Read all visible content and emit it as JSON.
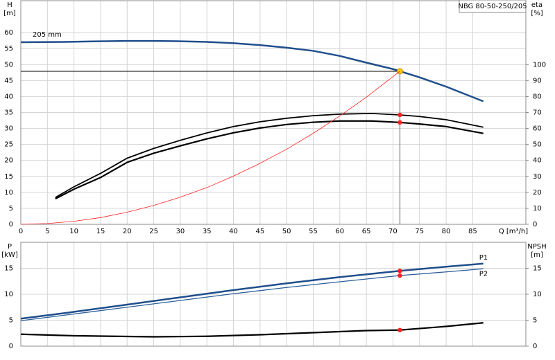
{
  "chart_data": [
    {
      "type": "line",
      "title": "NBG 80-50-250/205",
      "curve_label": "205 mm",
      "ylabel": "H",
      "yunit": "[m]",
      "y2label": "eta",
      "y2unit": "[%]",
      "xlabel": "Q [m³/h]",
      "xlim": [
        0,
        95
      ],
      "xticks": [
        0,
        5,
        10,
        15,
        20,
        25,
        30,
        35,
        40,
        45,
        50,
        55,
        60,
        65,
        70,
        75,
        80,
        85
      ],
      "xtick_labels": true,
      "ylim": [
        0,
        70
      ],
      "yticks": [
        0,
        5,
        10,
        15,
        20,
        25,
        30,
        35,
        40,
        45,
        50,
        55,
        60
      ],
      "y2lim": [
        0,
        140
      ],
      "y2ticks": [
        0,
        10,
        20,
        30,
        40,
        50,
        60,
        70,
        80,
        90,
        100
      ],
      "grid": true,
      "duty_x": 71.3,
      "series": [
        {
          "color": "#1f4e8c",
          "line_width": 2.5,
          "duty_color": "#ffcc00",
          "duty_lines": true,
          "x": [
            0,
            8.5,
            15,
            20,
            25,
            30,
            35,
            40,
            45,
            50,
            55,
            60,
            65,
            70,
            75,
            80,
            87
          ],
          "values": [
            57,
            57.1,
            57.3,
            57.4,
            57.4,
            57.3,
            57.1,
            56.7,
            56.1,
            55.3,
            54.3,
            52.7,
            50.6,
            48.6,
            46.0,
            43.1,
            38.5
          ],
          "duty_value": 47.9
        },
        {
          "color": "#000000",
          "line_width": 1.8,
          "axis": "y2",
          "duty_color": "#ff2020",
          "x": [
            6.5,
            10,
            15,
            20,
            25,
            30,
            35,
            40,
            45,
            50,
            55,
            60,
            66,
            71.3,
            75,
            80,
            87
          ],
          "values": [
            16.8,
            23.5,
            31.9,
            41.4,
            47.5,
            52.6,
            57.2,
            61.2,
            64.2,
            66.4,
            68.0,
            69.0,
            69.4,
            68.5,
            67.5,
            65.5,
            60.8
          ],
          "duty_value": 68.5
        },
        {
          "color": "#000000",
          "line_width": 2.2,
          "axis": "y2",
          "duty_color": "#ff2020",
          "x": [
            6.5,
            10,
            15,
            20,
            25,
            30,
            35,
            40,
            45,
            50,
            55,
            60,
            66,
            71.3,
            75,
            80,
            87
          ],
          "values": [
            16,
            22,
            29.3,
            38.8,
            44.5,
            49.1,
            53.5,
            57.3,
            60.3,
            62.5,
            63.9,
            64.7,
            64.7,
            63.8,
            62.8,
            61.2,
            56.9
          ],
          "duty_value": 63.8
        },
        {
          "color": "#ff2020",
          "line_width": 0.8,
          "x": [
            0,
            5,
            10,
            15,
            20,
            25,
            30,
            35,
            40,
            45,
            50,
            55,
            60,
            65,
            71.3
          ],
          "values": [
            0,
            0.24,
            0.94,
            2.1,
            3.8,
            5.9,
            8.5,
            11.5,
            15.1,
            19.1,
            23.5,
            28.5,
            33.9,
            39.8,
            47.9
          ]
        }
      ]
    },
    {
      "type": "line",
      "ylabel": "P",
      "yunit": "[kW]",
      "y2label": "NPSH",
      "y2unit": "[m]",
      "xlim": [
        0,
        95
      ],
      "xticks": [
        0,
        5,
        10,
        15,
        20,
        25,
        30,
        35,
        40,
        45,
        50,
        55,
        60,
        65,
        70,
        75,
        80,
        85
      ],
      "xtick_labels": false,
      "ylim": [
        0,
        20
      ],
      "yticks": [
        0,
        5,
        10,
        15
      ],
      "y2lim": [
        0,
        20
      ],
      "y2ticks": [
        0,
        5,
        10,
        15
      ],
      "grid": true,
      "duty_x": 71.3,
      "series": [
        {
          "name": "P1",
          "color": "#1f4e8c",
          "line_width": 2.5,
          "duty_color": "#ff2020",
          "x": [
            0,
            8.5,
            20,
            30,
            40,
            50,
            60,
            71.3,
            80,
            87
          ],
          "values": [
            5.3,
            6.4,
            8.0,
            9.4,
            10.8,
            12.1,
            13.3,
            14.5,
            15.3,
            15.9
          ],
          "duty_value": 14.5
        },
        {
          "name": "P2",
          "color": "#2a5d9a",
          "line_width": 1.3,
          "duty_color": "#ff2020",
          "x": [
            0,
            8.5,
            20,
            30,
            40,
            50,
            60,
            71.3,
            80,
            87
          ],
          "values": [
            4.9,
            6.0,
            7.5,
            8.8,
            10.1,
            11.3,
            12.4,
            13.6,
            14.3,
            14.9
          ],
          "duty_value": 13.6
        },
        {
          "color": "#000000",
          "line_width": 2.2,
          "axis": "y2",
          "duty_color": "#ff2020",
          "x": [
            0,
            10,
            25,
            35,
            45,
            55,
            65,
            71.3,
            80,
            87
          ],
          "values": [
            2.3,
            2.0,
            1.8,
            1.9,
            2.2,
            2.6,
            3.0,
            3.1,
            3.8,
            4.5
          ],
          "duty_value": 3.1
        }
      ]
    }
  ]
}
